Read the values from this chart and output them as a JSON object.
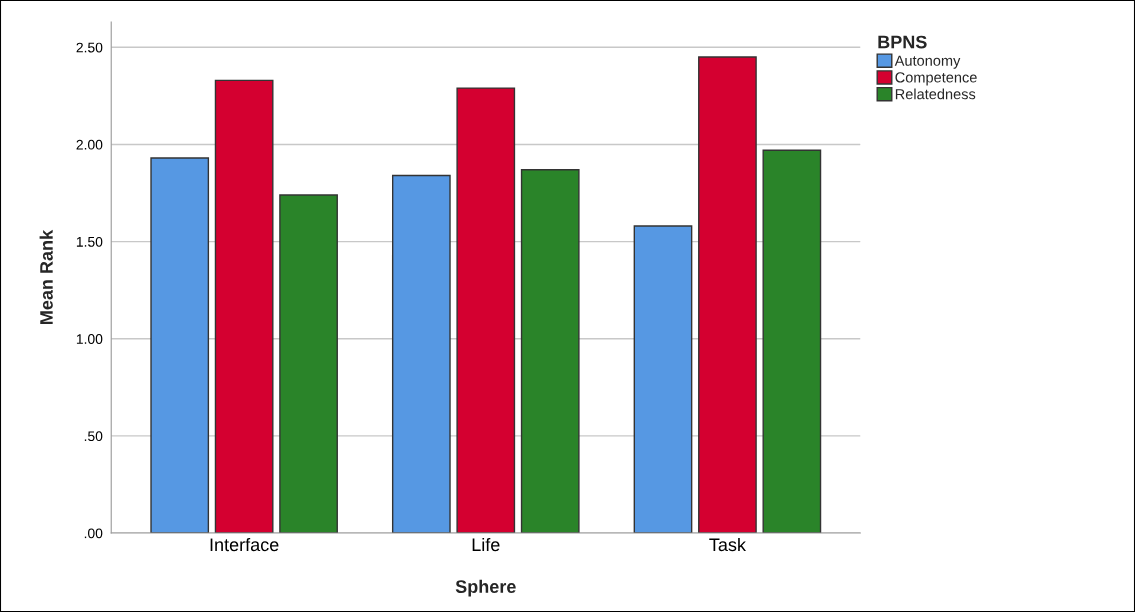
{
  "chart_data": {
    "type": "bar",
    "xlabel": "Sphere",
    "ylabel": "Mean Rank",
    "legend_title": "BPNS",
    "categories": [
      "Interface",
      "Life",
      "Task"
    ],
    "series": [
      {
        "name": "Autonomy",
        "color": "#5698e3",
        "values": [
          1.93,
          1.84,
          1.58
        ]
      },
      {
        "name": "Competence",
        "color": "#d40030",
        "values": [
          2.33,
          2.29,
          2.45
        ]
      },
      {
        "name": "Relatedness",
        "color": "#2a8429",
        "values": [
          1.74,
          1.87,
          1.97
        ]
      }
    ],
    "ylim": [
      0,
      2.63
    ],
    "yticks": [
      {
        "value": 0,
        "label": ".00"
      },
      {
        "value": 0.5,
        "label": ".50"
      },
      {
        "value": 1.0,
        "label": "1.00"
      },
      {
        "value": 1.5,
        "label": "1.50"
      },
      {
        "value": 2.0,
        "label": "2.00"
      },
      {
        "value": 2.5,
        "label": "2.50"
      }
    ],
    "grid": "y",
    "legend": "top right"
  }
}
